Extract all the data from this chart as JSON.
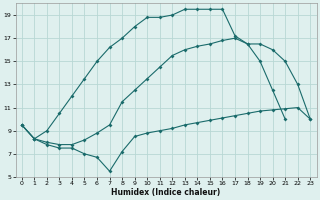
{
  "xlabel": "Humidex (Indice chaleur)",
  "bg_color": "#dff0ee",
  "grid_color": "#b8d8d4",
  "line_color": "#1a6b6b",
  "xlim": [
    -0.5,
    23.5
  ],
  "ylim": [
    5,
    20
  ],
  "xticks": [
    0,
    1,
    2,
    3,
    4,
    5,
    6,
    7,
    8,
    9,
    10,
    11,
    12,
    13,
    14,
    15,
    16,
    17,
    18,
    19,
    20,
    21,
    22,
    23
  ],
  "yticks": [
    5,
    7,
    9,
    11,
    13,
    15,
    17,
    19
  ],
  "line_top_x": [
    0,
    1,
    2,
    3,
    4,
    5,
    6,
    7,
    8,
    9,
    10,
    11,
    12,
    13,
    14,
    15,
    16,
    17,
    18,
    19,
    20,
    21,
    22,
    23
  ],
  "line_top_y": [
    9.5,
    8.3,
    9.0,
    10.5,
    12.0,
    13.5,
    15.0,
    16.2,
    17.0,
    18.0,
    18.8,
    18.8,
    19.0,
    19.5,
    19.5,
    19.5,
    19.5,
    17.2,
    16.5,
    15.0,
    12.5,
    10.0,
    null,
    null
  ],
  "line_mid_x": [
    0,
    1,
    2,
    3,
    4,
    5,
    6,
    7,
    8,
    9,
    10,
    11,
    12,
    13,
    14,
    15,
    16,
    17,
    18,
    19,
    20,
    21,
    22,
    23
  ],
  "line_mid_y": [
    9.5,
    8.3,
    8.0,
    7.8,
    7.8,
    8.2,
    8.8,
    9.5,
    11.5,
    12.5,
    13.5,
    14.5,
    15.5,
    16.0,
    16.3,
    16.5,
    16.8,
    17.0,
    16.5,
    16.5,
    16.0,
    15.0,
    13.0,
    10.0
  ],
  "line_bot_x": [
    0,
    1,
    2,
    3,
    4,
    5,
    6,
    7,
    8,
    9,
    10,
    11,
    12,
    13,
    14,
    15,
    16,
    17,
    18,
    19,
    20,
    21,
    22,
    23
  ],
  "line_bot_y": [
    9.5,
    8.3,
    7.8,
    7.5,
    7.5,
    7.0,
    6.7,
    5.5,
    7.2,
    8.5,
    8.8,
    9.0,
    9.2,
    9.5,
    9.7,
    9.9,
    10.1,
    10.3,
    10.5,
    10.7,
    10.8,
    10.9,
    11.0,
    10.0
  ]
}
